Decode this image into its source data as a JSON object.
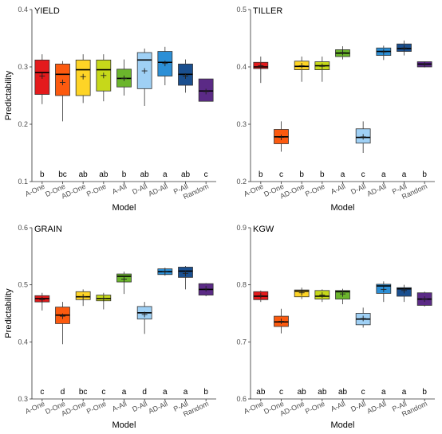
{
  "figure": {
    "xlabel": "Model",
    "ylabel": "Predictability"
  },
  "colors": {
    "A-One": "#e41a1c",
    "D-One": "#fc5a0f",
    "AD-One": "#fed426",
    "P-One": "#c6d81a",
    "A-All": "#6bb52c",
    "D-All": "#9fd0f5",
    "AD-All": "#2c8fd6",
    "P-All": "#1a4f8f",
    "Random": "#5b2a86"
  },
  "chart_data": [
    {
      "type": "box",
      "title": "YIELD",
      "xlabel": "Model",
      "ylabel": "Predictability",
      "ylim": [
        0.1,
        0.4
      ],
      "yticks": [
        "0.1",
        "0.2",
        "0.3",
        "0.4"
      ],
      "categories": [
        "A-One",
        "D-One",
        "AD-One",
        "P-One",
        "A-All",
        "D-All",
        "AD-All",
        "P-All",
        "Random"
      ],
      "boxes": [
        {
          "min": 0.235,
          "q1": 0.252,
          "median": 0.29,
          "q3": 0.312,
          "max": 0.322,
          "mean": 0.284
        },
        {
          "min": 0.205,
          "q1": 0.25,
          "median": 0.287,
          "q3": 0.305,
          "max": 0.31,
          "mean": 0.273
        },
        {
          "min": 0.237,
          "q1": 0.25,
          "median": 0.295,
          "q3": 0.312,
          "max": 0.322,
          "mean": 0.283
        },
        {
          "min": 0.24,
          "q1": 0.258,
          "median": 0.295,
          "q3": 0.312,
          "max": 0.322,
          "mean": 0.285
        },
        {
          "min": 0.25,
          "q1": 0.265,
          "median": 0.28,
          "q3": 0.296,
          "max": 0.313,
          "mean": 0.28
        },
        {
          "min": 0.232,
          "q1": 0.262,
          "median": 0.312,
          "q3": 0.325,
          "max": 0.332,
          "mean": 0.293
        },
        {
          "min": 0.268,
          "q1": 0.284,
          "median": 0.308,
          "q3": 0.327,
          "max": 0.335,
          "mean": 0.306
        },
        {
          "min": 0.255,
          "q1": 0.268,
          "median": 0.287,
          "q3": 0.305,
          "max": 0.313,
          "mean": 0.284
        },
        {
          "min": 0.24,
          "q1": 0.24,
          "median": 0.258,
          "q3": 0.279,
          "max": 0.279,
          "mean": 0.257
        }
      ],
      "letters": [
        "b",
        "bc",
        "ab",
        "ab",
        "b",
        "ab",
        "a",
        "ab",
        "c"
      ]
    },
    {
      "type": "box",
      "title": "TILLER",
      "xlabel": "Model",
      "ylabel": "",
      "ylim": [
        0.2,
        0.5
      ],
      "yticks": [
        "0.2",
        "0.3",
        "0.4",
        "0.5"
      ],
      "categories": [
        "A-One",
        "D-One",
        "AD-One",
        "P-One",
        "A-All",
        "D-All",
        "AD-All",
        "P-All",
        "Random"
      ],
      "boxes": [
        {
          "min": 0.372,
          "q1": 0.397,
          "median": 0.4,
          "q3": 0.408,
          "max": 0.418,
          "mean": 0.402
        },
        {
          "min": 0.252,
          "q1": 0.266,
          "median": 0.278,
          "q3": 0.291,
          "max": 0.305,
          "mean": 0.277
        },
        {
          "min": 0.374,
          "q1": 0.395,
          "median": 0.401,
          "q3": 0.41,
          "max": 0.418,
          "mean": 0.402
        },
        {
          "min": 0.374,
          "q1": 0.395,
          "median": 0.402,
          "q3": 0.409,
          "max": 0.418,
          "mean": 0.401
        },
        {
          "min": 0.413,
          "q1": 0.418,
          "median": 0.424,
          "q3": 0.43,
          "max": 0.436,
          "mean": 0.425
        },
        {
          "min": 0.25,
          "q1": 0.267,
          "median": 0.277,
          "q3": 0.292,
          "max": 0.305,
          "mean": 0.278
        },
        {
          "min": 0.412,
          "q1": 0.42,
          "median": 0.427,
          "q3": 0.433,
          "max": 0.437,
          "mean": 0.426
        },
        {
          "min": 0.42,
          "q1": 0.427,
          "median": 0.432,
          "q3": 0.44,
          "max": 0.446,
          "mean": 0.433
        },
        {
          "min": 0.4,
          "q1": 0.4,
          "median": 0.405,
          "q3": 0.409,
          "max": 0.409,
          "mean": 0.404
        }
      ],
      "letters": [
        "b",
        "c",
        "b",
        "b",
        "a",
        "c",
        "a",
        "a",
        "b"
      ]
    },
    {
      "type": "box",
      "title": "GRAIN",
      "xlabel": "Model",
      "ylabel": "Predictability",
      "ylim": [
        0.3,
        0.6
      ],
      "yticks": [
        "0.3",
        "0.4",
        "0.5",
        "0.6"
      ],
      "categories": [
        "A-One",
        "D-One",
        "AD-One",
        "P-One",
        "A-All",
        "D-All",
        "AD-All",
        "P-All",
        "Random"
      ],
      "boxes": [
        {
          "min": 0.455,
          "q1": 0.47,
          "median": 0.476,
          "q3": 0.481,
          "max": 0.486,
          "mean": 0.474
        },
        {
          "min": 0.396,
          "q1": 0.432,
          "median": 0.447,
          "q3": 0.461,
          "max": 0.47,
          "mean": 0.445
        },
        {
          "min": 0.463,
          "q1": 0.474,
          "median": 0.479,
          "q3": 0.488,
          "max": 0.492,
          "mean": 0.479
        },
        {
          "min": 0.457,
          "q1": 0.472,
          "median": 0.476,
          "q3": 0.482,
          "max": 0.486,
          "mean": 0.476
        },
        {
          "min": 0.484,
          "q1": 0.505,
          "median": 0.515,
          "q3": 0.519,
          "max": 0.523,
          "mean": 0.51
        },
        {
          "min": 0.414,
          "q1": 0.44,
          "median": 0.451,
          "q3": 0.462,
          "max": 0.47,
          "mean": 0.448
        },
        {
          "min": 0.516,
          "q1": 0.518,
          "median": 0.523,
          "q3": 0.528,
          "max": 0.53,
          "mean": 0.523
        },
        {
          "min": 0.492,
          "q1": 0.513,
          "median": 0.524,
          "q3": 0.531,
          "max": 0.533,
          "mean": 0.52
        },
        {
          "min": 0.48,
          "q1": 0.482,
          "median": 0.492,
          "q3": 0.502,
          "max": 0.503,
          "mean": 0.493
        }
      ],
      "letters": [
        "c",
        "d",
        "bc",
        "c",
        "a",
        "d",
        "a",
        "a",
        "b"
      ]
    },
    {
      "type": "box",
      "title": "KGW",
      "xlabel": "Model",
      "ylabel": "",
      "ylim": [
        0.6,
        0.9
      ],
      "yticks": [
        "0.6",
        "0.7",
        "0.8",
        "0.9"
      ],
      "categories": [
        "A-One",
        "D-One",
        "AD-One",
        "P-One",
        "A-All",
        "D-All",
        "AD-All",
        "P-All",
        "Random"
      ],
      "boxes": [
        {
          "min": 0.77,
          "q1": 0.774,
          "median": 0.78,
          "q3": 0.788,
          "max": 0.79,
          "mean": 0.781
        },
        {
          "min": 0.715,
          "q1": 0.727,
          "median": 0.735,
          "q3": 0.745,
          "max": 0.758,
          "mean": 0.736
        },
        {
          "min": 0.775,
          "q1": 0.779,
          "median": 0.789,
          "q3": 0.791,
          "max": 0.795,
          "mean": 0.786
        },
        {
          "min": 0.77,
          "q1": 0.775,
          "median": 0.78,
          "q3": 0.79,
          "max": 0.792,
          "mean": 0.782
        },
        {
          "min": 0.766,
          "q1": 0.775,
          "median": 0.788,
          "q3": 0.79,
          "max": 0.793,
          "mean": 0.784
        },
        {
          "min": 0.725,
          "q1": 0.73,
          "median": 0.74,
          "q3": 0.75,
          "max": 0.76,
          "mean": 0.741
        },
        {
          "min": 0.77,
          "q1": 0.785,
          "median": 0.798,
          "q3": 0.801,
          "max": 0.806,
          "mean": 0.792
        },
        {
          "min": 0.77,
          "q1": 0.78,
          "median": 0.793,
          "q3": 0.795,
          "max": 0.8,
          "mean": 0.79
        },
        {
          "min": 0.762,
          "q1": 0.764,
          "median": 0.775,
          "q3": 0.786,
          "max": 0.788,
          "mean": 0.775
        }
      ],
      "letters": [
        "ab",
        "c",
        "ab",
        "ab",
        "ab",
        "c",
        "a",
        "a",
        "b"
      ]
    }
  ]
}
